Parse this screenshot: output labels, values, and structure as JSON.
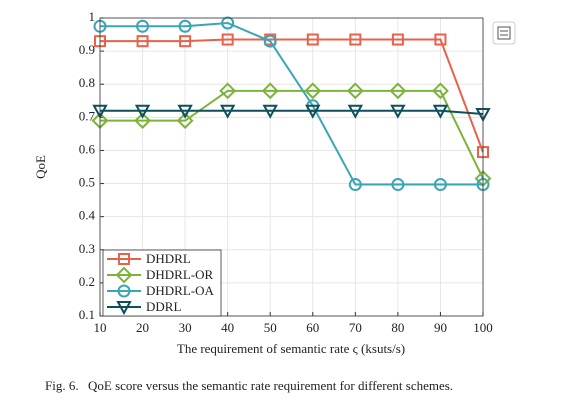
{
  "chart_data": {
    "type": "line",
    "xlabel": "The requirement of semantic rate ς (ksuts/s)",
    "ylabel": "QoE",
    "x": [
      10,
      20,
      30,
      40,
      50,
      60,
      70,
      80,
      90,
      100
    ],
    "xlim": [
      10,
      100
    ],
    "xticks": [
      10,
      20,
      30,
      40,
      50,
      60,
      70,
      80,
      90,
      100
    ],
    "ylim": [
      0.1,
      1
    ],
    "yticks": [
      0.1,
      0.2,
      0.3,
      0.4,
      0.5,
      0.6,
      0.7,
      0.8,
      0.9,
      1
    ],
    "grid": true,
    "legend": "lower left",
    "series": [
      {
        "name": "DHDRL",
        "color": "#e8614a",
        "marker": "square",
        "values": [
          0.93,
          0.93,
          0.93,
          0.935,
          0.935,
          0.935,
          0.935,
          0.935,
          0.935,
          0.595
        ]
      },
      {
        "name": "DHDRL-OR",
        "color": "#7cb33a",
        "marker": "diamond",
        "values": [
          0.69,
          0.69,
          0.69,
          0.78,
          0.78,
          0.78,
          0.78,
          0.78,
          0.78,
          0.515
        ]
      },
      {
        "name": "DHDRL-OA",
        "color": "#3aa5b5",
        "marker": "circle",
        "values": [
          0.975,
          0.975,
          0.975,
          0.985,
          0.93,
          0.735,
          0.497,
          0.497,
          0.497,
          0.497
        ]
      },
      {
        "name": "DDRL",
        "color": "#0d4f5c",
        "marker": "triangle-down",
        "values": [
          0.72,
          0.72,
          0.72,
          0.72,
          0.72,
          0.72,
          0.72,
          0.72,
          0.72,
          0.71
        ]
      }
    ]
  },
  "figure_label": "Fig. 6.",
  "caption": "QoE score versus the semantic rate requirement for different schemes."
}
